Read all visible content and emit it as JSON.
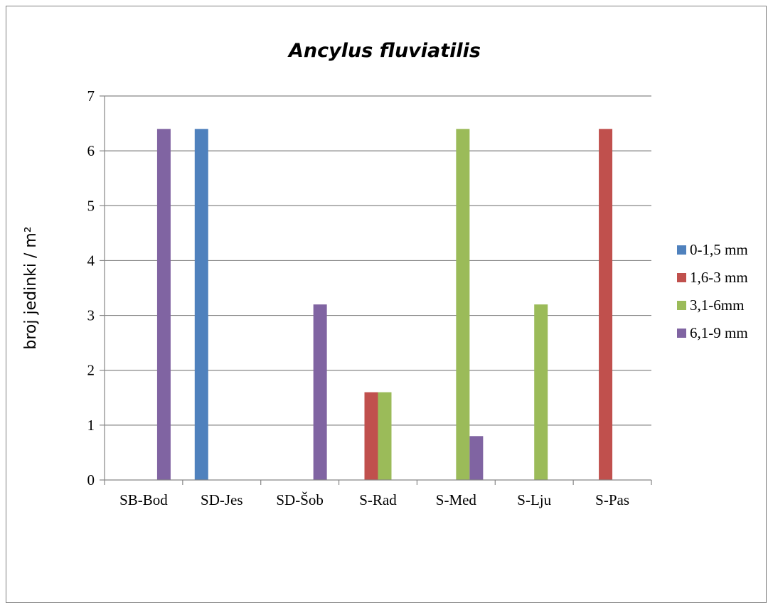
{
  "chart_data": {
    "type": "bar",
    "title": "Ancylus fluviatilis",
    "xlabel": "",
    "ylabel": "broj jedinki / m²",
    "ylim": [
      0,
      7
    ],
    "yticks": [
      "0",
      "1",
      "2",
      "3",
      "4",
      "5",
      "6",
      "7"
    ],
    "categories": [
      "SB-Bod",
      "SD-Jes",
      "SD-Šob",
      "S-Rad",
      "S-Med",
      "S-Lju",
      "S-Pas"
    ],
    "series": [
      {
        "name": "0-1,5 mm",
        "color": "#4f81bd",
        "values": [
          0,
          6.4,
          0,
          0,
          0,
          0,
          0
        ]
      },
      {
        "name": "1,6-3 mm",
        "color": "#c0504d",
        "values": [
          0,
          0,
          0,
          1.6,
          0,
          0,
          6.4
        ]
      },
      {
        "name": "3,1-6mm",
        "color": "#9bbb59",
        "values": [
          0,
          0,
          0,
          1.6,
          6.4,
          3.2,
          0
        ]
      },
      {
        "name": "6,1-9 mm",
        "color": "#8064a2",
        "values": [
          6.4,
          0,
          3.2,
          0,
          0.8,
          0,
          0
        ]
      }
    ],
    "grid": true,
    "legend_position": "right"
  }
}
